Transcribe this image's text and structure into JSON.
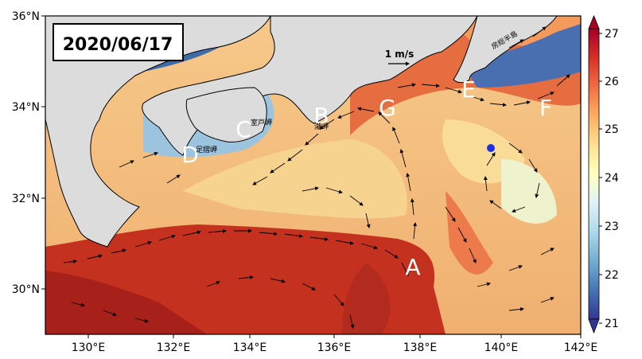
{
  "map": {
    "date_label": "2020/06/17",
    "scale_label": "1 m/s",
    "region_labels": [
      "A",
      "B",
      "C",
      "D",
      "E",
      "F",
      "G"
    ],
    "place_labels": {
      "muroto": "室戸岬",
      "shiono": "潮岬",
      "ashizuri": "足摺岬",
      "boso": "房総半島"
    },
    "lat_ticks": [
      "36°N",
      "34°N",
      "32°N",
      "30°N"
    ],
    "lon_ticks": [
      "130°E",
      "132°E",
      "134°E",
      "136°E",
      "138°E",
      "140°E",
      "142°E"
    ],
    "marker": {
      "lon": 139.8,
      "lat": 33.1,
      "color": "#1f2ee6"
    },
    "colors": {
      "land": "#dcdcdc",
      "arrow": "#000000",
      "coast": "#000000"
    }
  },
  "colorbar": {
    "ticks": [
      "27",
      "26",
      "25",
      "24",
      "23",
      "22",
      "21"
    ],
    "range": [
      21,
      27
    ],
    "colors": [
      "#313695",
      "#4575b4",
      "#74add1",
      "#abd9e9",
      "#e0f3f8",
      "#ffffbf",
      "#fee090",
      "#fdae61",
      "#f46d43",
      "#d73027",
      "#a50026"
    ]
  }
}
